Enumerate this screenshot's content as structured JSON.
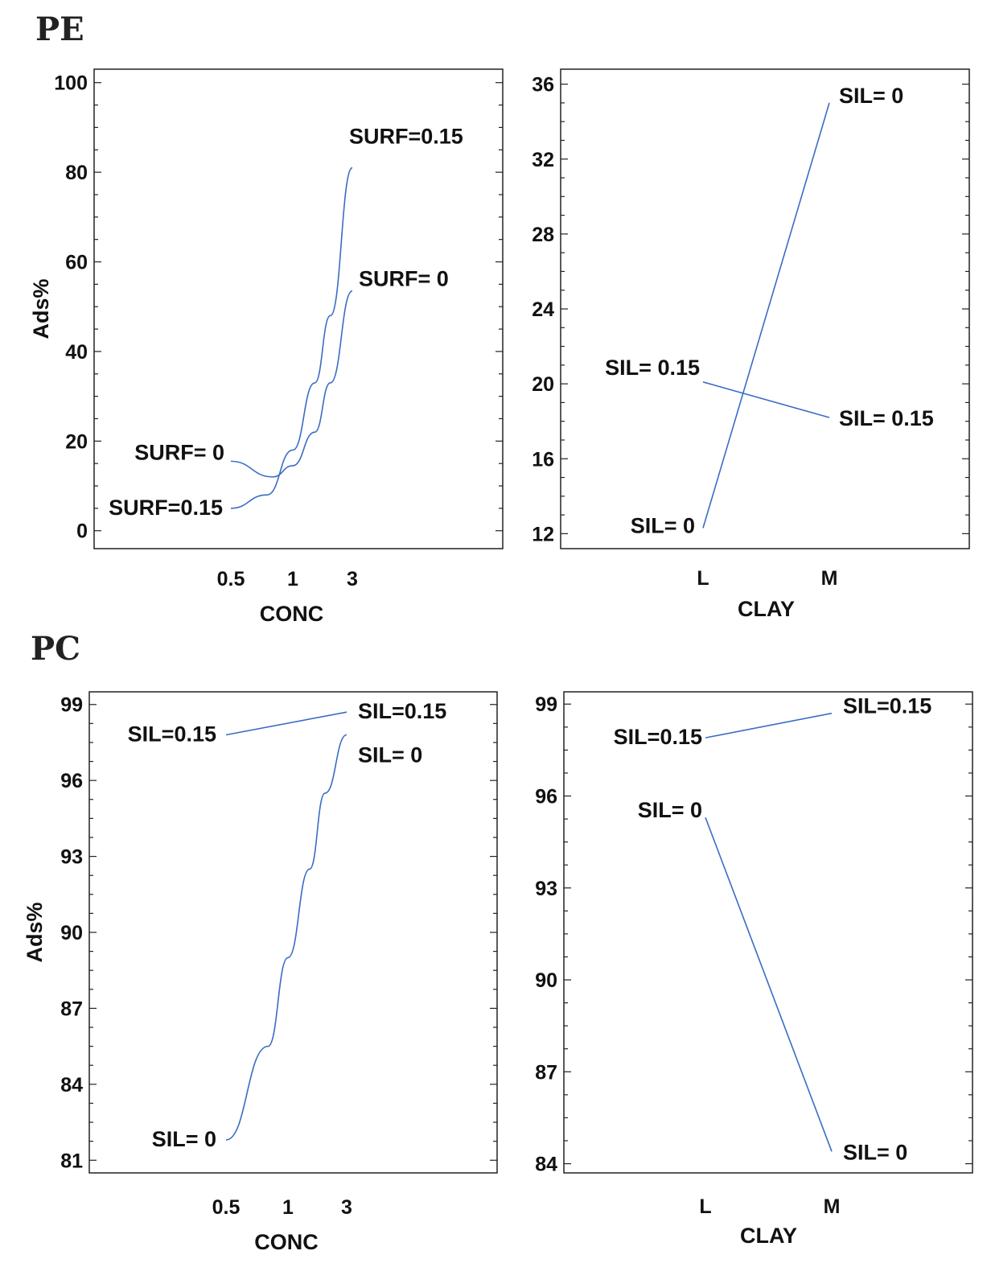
{
  "colors": {
    "line": "#3a6cc4",
    "frame": "#222222"
  },
  "sections": [
    {
      "title": "PE"
    },
    {
      "title": "PC"
    }
  ],
  "chart_data": [
    {
      "type": "line",
      "section": "PE",
      "xlabel": "CONC",
      "ylabel": "Ads%",
      "categories": [
        "0.5",
        "1",
        "3"
      ],
      "ylim": [
        -4,
        103
      ],
      "yticks": [
        0,
        20,
        40,
        60,
        80,
        100
      ],
      "series": [
        {
          "name": "SURF= 0",
          "x": [
            0.5,
            0.8,
            1,
            1.5,
            2,
            3
          ],
          "values": [
            15.5,
            12.0,
            14.5,
            22.0,
            33.0,
            53.5
          ],
          "start_label": "SURF= 0",
          "end_label": "SURF= 0"
        },
        {
          "name": "SURF=0.15",
          "x": [
            0.5,
            0.75,
            1,
            1.5,
            2,
            3
          ],
          "values": [
            5.0,
            8.0,
            18.0,
            33.0,
            48.0,
            81.0
          ],
          "start_label": "SURF=0.15",
          "end_label": "SURF=0.15"
        }
      ]
    },
    {
      "type": "line",
      "section": "PE",
      "xlabel": "CLAY",
      "ylabel": "",
      "categories": [
        "L",
        "M"
      ],
      "ylim": [
        11.2,
        36.8
      ],
      "yticks": [
        12,
        16,
        20,
        24,
        28,
        32,
        36
      ],
      "series": [
        {
          "name": "SIL= 0",
          "x": [
            0,
            1
          ],
          "values": [
            12.3,
            35.0
          ],
          "start_label": "SIL= 0",
          "end_label": "SIL= 0"
        },
        {
          "name": "SIL= 0.15",
          "x": [
            0,
            1
          ],
          "values": [
            20.1,
            18.2
          ],
          "start_label": "SIL= 0.15",
          "end_label": "SIL= 0.15"
        }
      ]
    },
    {
      "type": "line",
      "section": "PC",
      "xlabel": "CONC",
      "ylabel": "Ads%",
      "categories": [
        "0.5",
        "1",
        "3"
      ],
      "ylim": [
        80.5,
        99.5
      ],
      "yticks": [
        81,
        84,
        87,
        90,
        93,
        96,
        99
      ],
      "series": [
        {
          "name": "SIL=0.15",
          "x": [
            0.5,
            3
          ],
          "values": [
            97.8,
            98.7
          ],
          "start_label": "SIL=0.15",
          "end_label": "SIL=0.15"
        },
        {
          "name": "SIL= 0",
          "x": [
            0.5,
            0.8,
            1,
            1.5,
            2,
            3
          ],
          "values": [
            81.8,
            85.5,
            89.0,
            92.5,
            95.5,
            97.8
          ],
          "start_label": "SIL= 0",
          "end_label": "SIL= 0"
        }
      ]
    },
    {
      "type": "line",
      "section": "PC",
      "xlabel": "CLAY",
      "ylabel": "",
      "categories": [
        "L",
        "M"
      ],
      "ylim": [
        83.7,
        99.4
      ],
      "yticks": [
        84,
        87,
        90,
        93,
        96,
        99
      ],
      "series": [
        {
          "name": "SIL=0.15",
          "x": [
            0,
            1
          ],
          "values": [
            97.9,
            98.7
          ],
          "start_label": "SIL=0.15",
          "end_label": "SIL=0.15"
        },
        {
          "name": "SIL= 0",
          "x": [
            0,
            1
          ],
          "values": [
            95.3,
            84.4
          ],
          "start_label": "SIL= 0",
          "end_label": "SIL= 0"
        }
      ]
    }
  ]
}
